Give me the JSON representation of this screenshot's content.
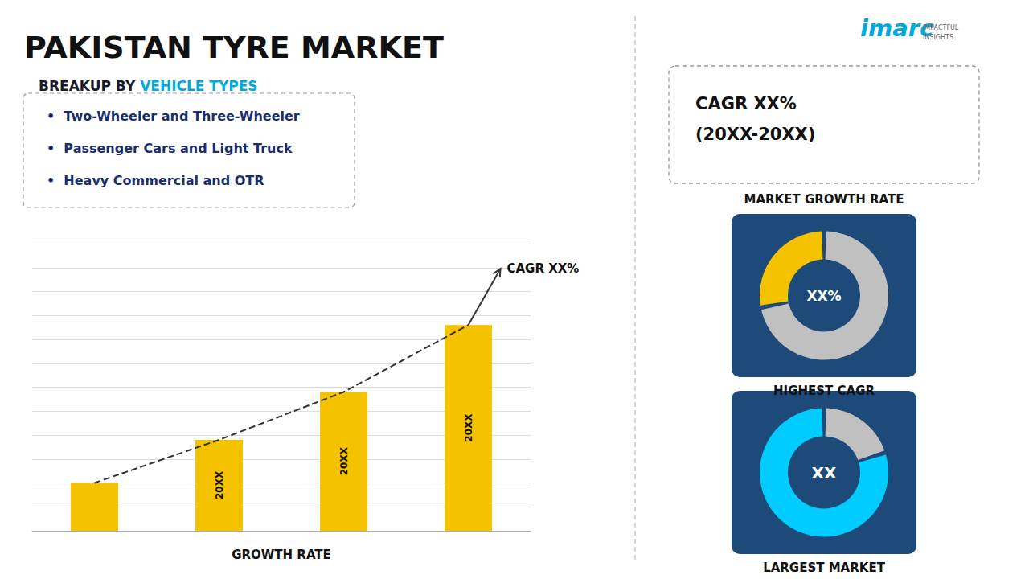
{
  "chart_data": [
    {
      "type": "bar",
      "title": "PAKISTAN TYRE MARKET",
      "subtitle": [
        {
          "text": "BREAKUP BY ",
          "color": "#1a1a2e"
        },
        {
          "text": "VEHICLE TYPES",
          "color": "#00aadd"
        }
      ],
      "annotations": [
        "•  Two-Wheeler and Three-Wheeler",
        "•  Passenger Cars and Light Truck",
        "•  Heavy Commercial and OTR",
        "CAGR XX%",
        "imarc",
        "IMPACTFUL\nINSIGHTS",
        "CAGR XX%",
        "(20XX-20XX)",
        "MARKET GROWTH RATE"
      ],
      "xlabel": "GROWTH RATE",
      "categories": [
        null,
        "20XX",
        "20XX",
        "20XX"
      ],
      "series": [
        {
          "type": "bar",
          "color": "#f5c200",
          "values": [
            1.0,
            1.9,
            2.9,
            4.3
          ]
        },
        {
          "type": "line",
          "line_style": "dashed",
          "color": "#333333",
          "values": [
            1.0,
            1.9,
            2.9,
            4.3
          ]
        }
      ],
      "ylim": [
        0,
        6
      ],
      "yticks": [
        0,
        0.5,
        1,
        1.5,
        2,
        2.5,
        3,
        3.5,
        4,
        4.5,
        5,
        5.5,
        6
      ],
      "grid": true,
      "tick_labels": false
    },
    {
      "type": "pie",
      "title": "HIGHEST CAGR",
      "annotations": [
        "XX%"
      ],
      "values": [
        28,
        72
      ],
      "colors": [
        "#f5c200",
        "#c0c0c0"
      ]
    },
    {
      "type": "pie",
      "title": "LARGEST MARKET",
      "annotations": [
        "XX"
      ],
      "values": [
        80,
        20
      ],
      "colors": [
        "#00ccff",
        "#c0c0c0"
      ]
    }
  ]
}
